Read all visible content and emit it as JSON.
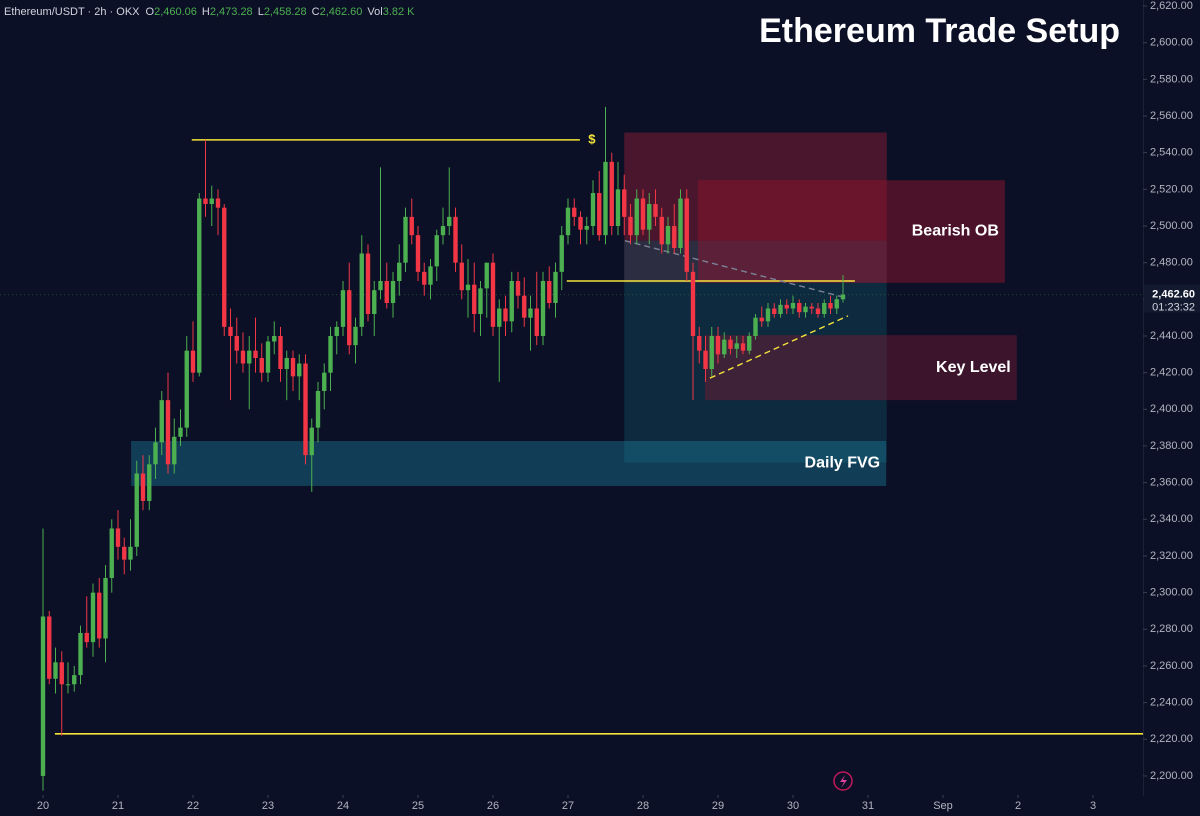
{
  "chart_data": {
    "type": "candlestick",
    "title": "Ethereum Trade Setup",
    "legend": {
      "symbol": "Ethereum/USDT · 2h · OKX",
      "value_color": "#4caf50",
      "fields": [
        {
          "key": "O",
          "value": "2,460.06"
        },
        {
          "key": "H",
          "value": "2,473.28"
        },
        {
          "key": "L",
          "value": "2,458.28"
        },
        {
          "key": "C",
          "value": "2,462.60"
        },
        {
          "key": "Vol",
          "value": "3.82 K"
        }
      ]
    },
    "price_label": "2,462.60",
    "countdown": "01:23:32",
    "up_color": "#4caf50",
    "down_color": "#f23645",
    "candles": [
      [
        2200,
        2335,
        2192,
        2287
      ],
      [
        2287,
        2290,
        2250,
        2253
      ],
      [
        2253,
        2270,
        2245,
        2262
      ],
      [
        2262,
        2268,
        2222,
        2250
      ],
      [
        2250,
        2262,
        2245,
        2250
      ],
      [
        2250,
        2260,
        2246,
        2255
      ],
      [
        2255,
        2282,
        2250,
        2278
      ],
      [
        2278,
        2298,
        2270,
        2273
      ],
      [
        2273,
        2305,
        2265,
        2300
      ],
      [
        2300,
        2308,
        2270,
        2275
      ],
      [
        2275,
        2315,
        2262,
        2308
      ],
      [
        2308,
        2340,
        2300,
        2335
      ],
      [
        2335,
        2345,
        2318,
        2325
      ],
      [
        2325,
        2330,
        2310,
        2318
      ],
      [
        2318,
        2340,
        2312,
        2325
      ],
      [
        2325,
        2372,
        2320,
        2365
      ],
      [
        2365,
        2375,
        2345,
        2350
      ],
      [
        2350,
        2375,
        2345,
        2370
      ],
      [
        2370,
        2390,
        2362,
        2382
      ],
      [
        2382,
        2410,
        2375,
        2405
      ],
      [
        2405,
        2420,
        2365,
        2370
      ],
      [
        2370,
        2395,
        2365,
        2385
      ],
      [
        2385,
        2400,
        2380,
        2390
      ],
      [
        2390,
        2440,
        2385,
        2432
      ],
      [
        2432,
        2448,
        2415,
        2420
      ],
      [
        2420,
        2518,
        2418,
        2515
      ],
      [
        2515,
        2547,
        2505,
        2512
      ],
      [
        2512,
        2522,
        2500,
        2515
      ],
      [
        2515,
        2520,
        2495,
        2510
      ],
      [
        2510,
        2512,
        2440,
        2445
      ],
      [
        2445,
        2455,
        2405,
        2440
      ],
      [
        2440,
        2450,
        2425,
        2432
      ],
      [
        2432,
        2442,
        2420,
        2425
      ],
      [
        2425,
        2440,
        2400,
        2432
      ],
      [
        2432,
        2450,
        2420,
        2428
      ],
      [
        2428,
        2436,
        2415,
        2420
      ],
      [
        2420,
        2440,
        2415,
        2437
      ],
      [
        2437,
        2448,
        2430,
        2440
      ],
      [
        2440,
        2445,
        2415,
        2422
      ],
      [
        2422,
        2432,
        2405,
        2428
      ],
      [
        2428,
        2432,
        2410,
        2418
      ],
      [
        2418,
        2430,
        2405,
        2425
      ],
      [
        2425,
        2430,
        2370,
        2375
      ],
      [
        2375,
        2395,
        2355,
        2390
      ],
      [
        2390,
        2415,
        2382,
        2410
      ],
      [
        2410,
        2425,
        2400,
        2420
      ],
      [
        2420,
        2445,
        2410,
        2440
      ],
      [
        2440,
        2448,
        2430,
        2445
      ],
      [
        2445,
        2470,
        2440,
        2465
      ],
      [
        2465,
        2480,
        2430,
        2435
      ],
      [
        2435,
        2450,
        2425,
        2445
      ],
      [
        2445,
        2495,
        2440,
        2485
      ],
      [
        2485,
        2490,
        2448,
        2452
      ],
      [
        2452,
        2470,
        2440,
        2465
      ],
      [
        2465,
        2532,
        2460,
        2470
      ],
      [
        2470,
        2480,
        2455,
        2458
      ],
      [
        2458,
        2475,
        2450,
        2470
      ],
      [
        2470,
        2490,
        2462,
        2480
      ],
      [
        2480,
        2510,
        2475,
        2505
      ],
      [
        2505,
        2515,
        2490,
        2495
      ],
      [
        2495,
        2500,
        2470,
        2475
      ],
      [
        2475,
        2480,
        2462,
        2468
      ],
      [
        2468,
        2482,
        2460,
        2478
      ],
      [
        2478,
        2498,
        2470,
        2495
      ],
      [
        2495,
        2510,
        2490,
        2500
      ],
      [
        2500,
        2532,
        2495,
        2505
      ],
      [
        2505,
        2510,
        2475,
        2480
      ],
      [
        2480,
        2490,
        2460,
        2465
      ],
      [
        2465,
        2482,
        2450,
        2468
      ],
      [
        2468,
        2480,
        2442,
        2452
      ],
      [
        2452,
        2470,
        2440,
        2466
      ],
      [
        2466,
        2480,
        2450,
        2480
      ],
      [
        2480,
        2485,
        2440,
        2445
      ],
      [
        2445,
        2460,
        2415,
        2455
      ],
      [
        2455,
        2462,
        2440,
        2448
      ],
      [
        2448,
        2475,
        2442,
        2470
      ],
      [
        2470,
        2475,
        2455,
        2462
      ],
      [
        2462,
        2472,
        2445,
        2450
      ],
      [
        2450,
        2462,
        2432,
        2455
      ],
      [
        2455,
        2475,
        2435,
        2440
      ],
      [
        2440,
        2475,
        2435,
        2470
      ],
      [
        2470,
        2478,
        2455,
        2458
      ],
      [
        2458,
        2480,
        2450,
        2475
      ],
      [
        2475,
        2500,
        2465,
        2495
      ],
      [
        2495,
        2515,
        2490,
        2510
      ],
      [
        2510,
        2515,
        2500,
        2505
      ],
      [
        2505,
        2508,
        2490,
        2498
      ],
      [
        2498,
        2505,
        2490,
        2500
      ],
      [
        2500,
        2525,
        2495,
        2518
      ],
      [
        2518,
        2530,
        2492,
        2495
      ],
      [
        2495,
        2565,
        2490,
        2535
      ],
      [
        2535,
        2540,
        2495,
        2500
      ],
      [
        2500,
        2535,
        2495,
        2520
      ],
      [
        2520,
        2528,
        2495,
        2505
      ],
      [
        2505,
        2512,
        2490,
        2495
      ],
      [
        2495,
        2520,
        2490,
        2515
      ],
      [
        2515,
        2520,
        2495,
        2498
      ],
      [
        2498,
        2518,
        2490,
        2512
      ],
      [
        2512,
        2520,
        2500,
        2505
      ],
      [
        2505,
        2510,
        2485,
        2490
      ],
      [
        2490,
        2505,
        2485,
        2500
      ],
      [
        2500,
        2512,
        2485,
        2488
      ],
      [
        2488,
        2520,
        2485,
        2515
      ],
      [
        2515,
        2520,
        2470,
        2475
      ],
      [
        2475,
        2480,
        2405,
        2440
      ],
      [
        2440,
        2445,
        2425,
        2432
      ],
      [
        2432,
        2440,
        2415,
        2422
      ],
      [
        2422,
        2445,
        2418,
        2440
      ],
      [
        2440,
        2445,
        2425,
        2430
      ],
      [
        2430,
        2442,
        2428,
        2438
      ],
      [
        2438,
        2440,
        2430,
        2433
      ],
      [
        2433,
        2440,
        2428,
        2436
      ],
      [
        2436,
        2440,
        2430,
        2432
      ],
      [
        2432,
        2442,
        2430,
        2440
      ],
      [
        2440,
        2452,
        2438,
        2450
      ],
      [
        2450,
        2456,
        2445,
        2448
      ],
      [
        2448,
        2458,
        2445,
        2455
      ],
      [
        2455,
        2458,
        2450,
        2452
      ],
      [
        2452,
        2460,
        2450,
        2457
      ],
      [
        2457,
        2460,
        2452,
        2455
      ],
      [
        2455,
        2462,
        2452,
        2458
      ],
      [
        2458,
        2460,
        2450,
        2453
      ],
      [
        2453,
        2458,
        2450,
        2456
      ],
      [
        2456,
        2458,
        2452,
        2455
      ],
      [
        2455,
        2458,
        2450,
        2452
      ],
      [
        2452,
        2460,
        2450,
        2458
      ],
      [
        2458,
        2462,
        2452,
        2455
      ],
      [
        2455,
        2462,
        2452,
        2460.06
      ],
      [
        2460.06,
        2473.28,
        2458.28,
        2462.6
      ]
    ],
    "xlim": [
      -6.88,
      176
    ],
    "xticks": [
      {
        "value": 0,
        "label": "20"
      },
      {
        "value": 12,
        "label": "21"
      },
      {
        "value": 24,
        "label": "22"
      },
      {
        "value": 36,
        "label": "23"
      },
      {
        "value": 48,
        "label": "24"
      },
      {
        "value": 60,
        "label": "25"
      },
      {
        "value": 72,
        "label": "26"
      },
      {
        "value": 84,
        "label": "27"
      },
      {
        "value": 96,
        "label": "28"
      },
      {
        "value": 108,
        "label": "29"
      },
      {
        "value": 120,
        "label": "30"
      },
      {
        "value": 132,
        "label": "31"
      },
      {
        "value": 144,
        "label": "Sep"
      },
      {
        "value": 156,
        "label": "2"
      },
      {
        "value": 168,
        "label": "3"
      }
    ],
    "ylim": [
      2189.6,
      2623.3
    ],
    "yticks": [
      {
        "value": 2200,
        "label": "2,200.00"
      },
      {
        "value": 2220,
        "label": "2,220.00"
      },
      {
        "value": 2240,
        "label": "2,240.00"
      },
      {
        "value": 2260,
        "label": "2,260.00"
      },
      {
        "value": 2280,
        "label": "2,280.00"
      },
      {
        "value": 2300,
        "label": "2,300.00"
      },
      {
        "value": 2320,
        "label": "2,320.00"
      },
      {
        "value": 2340,
        "label": "2,340.00"
      },
      {
        "value": 2360,
        "label": "2,360.00"
      },
      {
        "value": 2380,
        "label": "2,380.00"
      },
      {
        "value": 2400,
        "label": "2,400.00"
      },
      {
        "value": 2420,
        "label": "2,420.00"
      },
      {
        "value": 2440,
        "label": "2,440.00"
      },
      {
        "value": 2460,
        "label": "2,460.00"
      },
      {
        "value": 2480,
        "label": "2,480.00"
      },
      {
        "value": 2500,
        "label": "2,500.00"
      },
      {
        "value": 2520,
        "label": "2,520.00"
      },
      {
        "value": 2540,
        "label": "2,540.00"
      },
      {
        "value": 2560,
        "label": "2,560.00"
      },
      {
        "value": 2580,
        "label": "2,580.00"
      },
      {
        "value": 2600,
        "label": "2,600.00"
      },
      {
        "value": 2620,
        "label": "2,620.00"
      }
    ],
    "zones": [
      {
        "x": [
          93,
          135
        ],
        "y": [
          2492,
          2551
        ],
        "color": "rgba(150,30,55,0.45)"
      },
      {
        "x": [
          93,
          135
        ],
        "y": [
          2469,
          2492
        ],
        "color": "rgba(110,100,120,0.35)"
      },
      {
        "x": [
          93,
          135
        ],
        "y": [
          2371,
          2469
        ],
        "color": "rgba(20,120,140,0.25)"
      },
      {
        "name": "Bearish OB",
        "x": [
          104.8,
          153.9
        ],
        "y": [
          2469,
          2525
        ],
        "color": "rgba(140,20,45,0.5)"
      },
      {
        "name": "Key Level",
        "x": [
          105.9,
          155.8
        ],
        "y": [
          2405,
          2440.5
        ],
        "color": "rgba(110,25,50,0.5)"
      },
      {
        "name": "Daily FVG",
        "x": [
          14.1,
          134.9
        ],
        "y": [
          2358.2,
          2382.7
        ],
        "color": "rgba(30,130,160,0.4)"
      }
    ],
    "lines": [
      {
        "label": "$",
        "y": 2547,
        "x": [
          23.8,
          85.9
        ],
        "color": "#f5e33a"
      },
      {
        "y": 2223,
        "x": [
          1.9,
          176
        ],
        "color": "#f5e33a"
      },
      {
        "y": 2470,
        "x": [
          83.8,
          129.9
        ],
        "color": "#f5e33a"
      }
    ],
    "trendlines": [
      {
        "x": [
          106.7,
          128.8
        ],
        "y": [
          2417,
          2451
        ],
        "color": "#f5e33a"
      },
      {
        "x": [
          93.1,
          128.3
        ],
        "y": [
          2492,
          2461
        ],
        "color": "#7a8296"
      }
    ]
  }
}
